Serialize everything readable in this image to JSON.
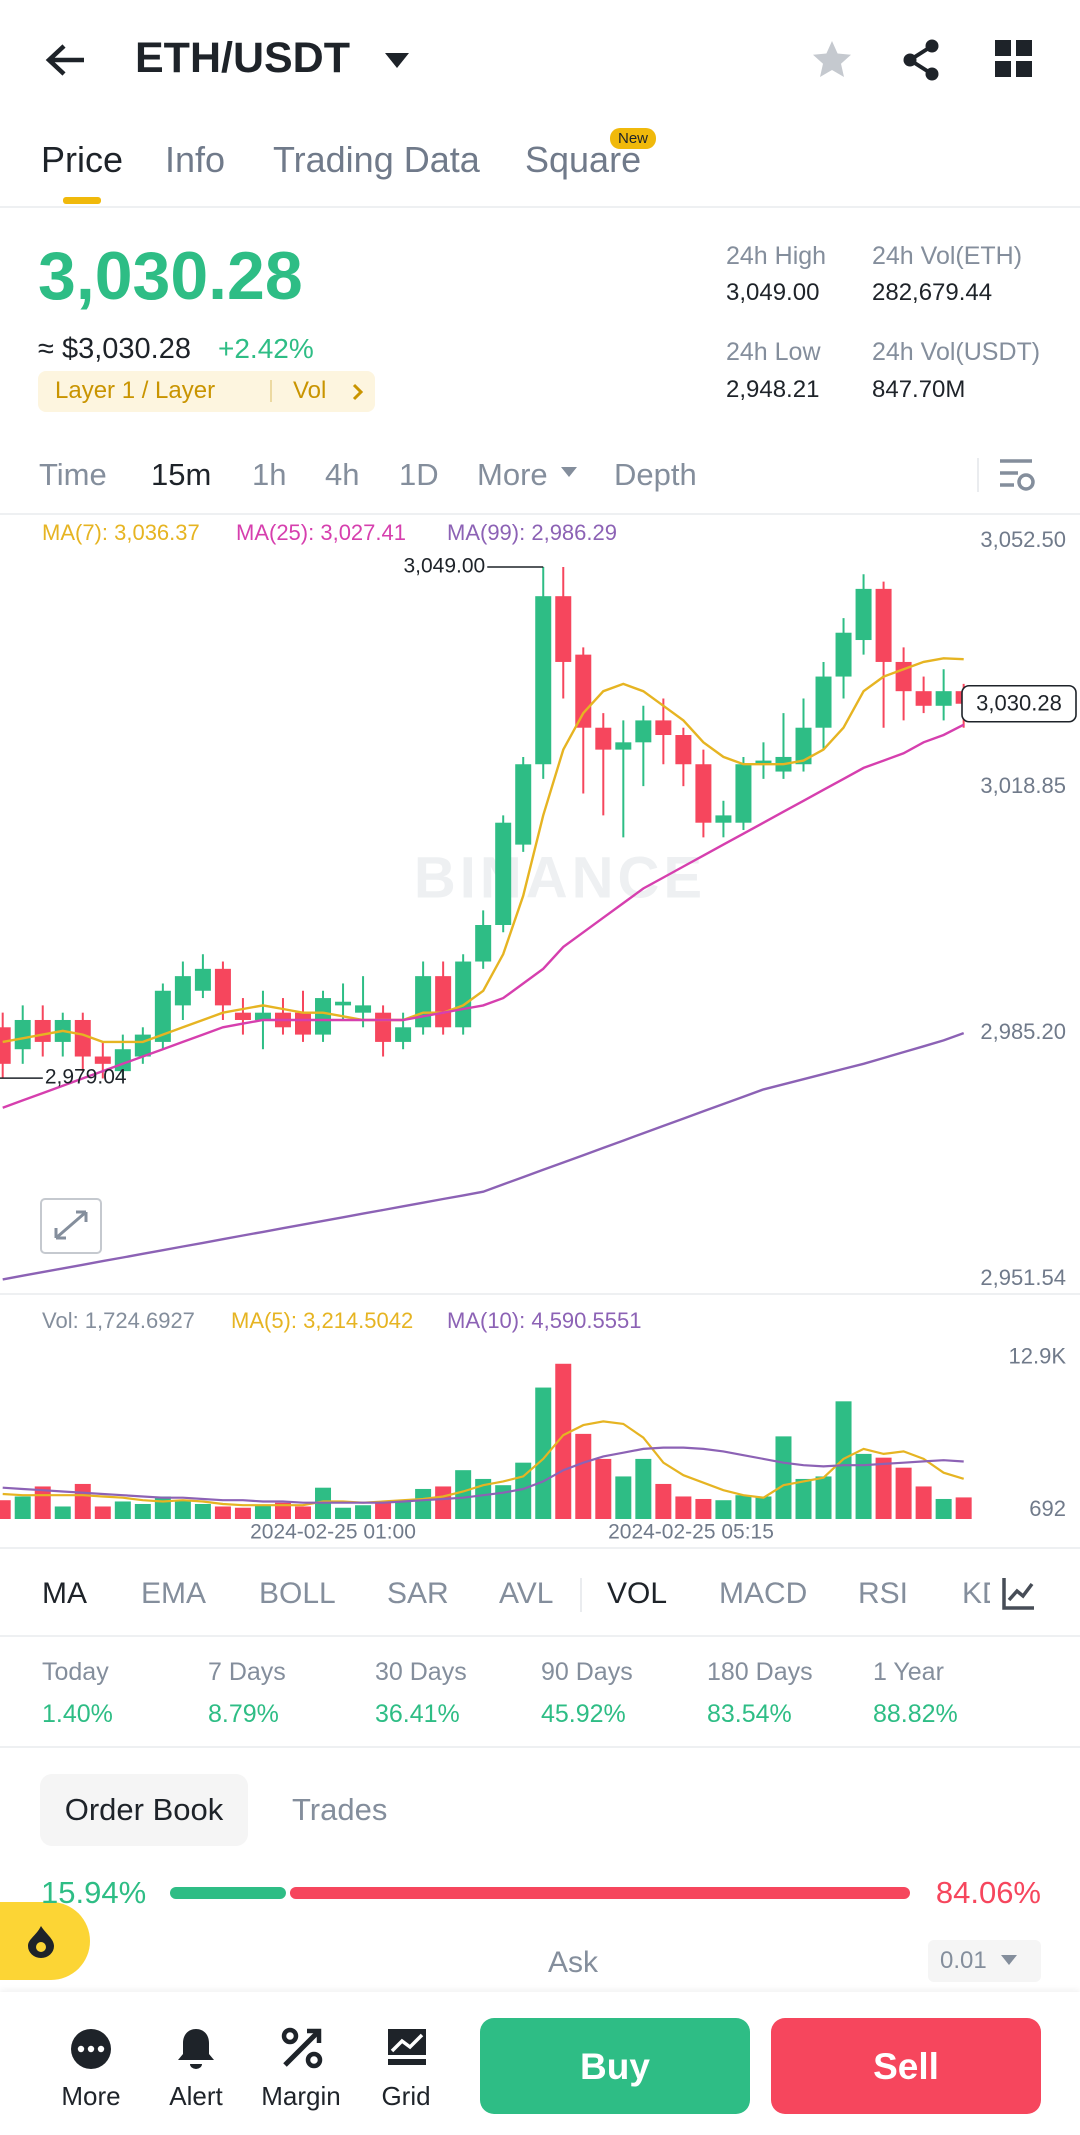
{
  "header": {
    "pair": "ETH/USDT"
  },
  "tabs": [
    "Price",
    "Info",
    "Trading Data",
    "Square"
  ],
  "tab_badge": "New",
  "ticker": {
    "price": "3,030.28",
    "usd": "≈ $3,030.28",
    "change": "+2.42%",
    "tag": "Layer 1 / Layer",
    "tag_link": "Vol"
  },
  "stats": [
    {
      "label": "24h High",
      "value": "3,049.00"
    },
    {
      "label": "24h Vol(ETH)",
      "value": "282,679.44"
    },
    {
      "label": "24h Low",
      "value": "2,948.21"
    },
    {
      "label": "24h Vol(USDT)",
      "value": "847.70M"
    }
  ],
  "intervals": [
    "Time",
    "15m",
    "1h",
    "4h",
    "1D",
    "More",
    "Depth"
  ],
  "chart_data": {
    "type": "candlestick",
    "watermark": "BINANCE",
    "up_color": "#2ebd85",
    "down_color": "#f6465d",
    "ylim": [
      2949.5,
      3055.7
    ],
    "yticks": [
      {
        "value": 3052.5,
        "label": "3,052.50"
      },
      {
        "value": 3018.85,
        "label": "3,018.85"
      },
      {
        "value": 2985.2,
        "label": "2,985.20"
      },
      {
        "value": 2951.54,
        "label": "2,951.54"
      }
    ],
    "candles": [
      [
        2986,
        2988,
        2979,
        2981
      ],
      [
        2983,
        2989,
        2981,
        2987
      ],
      [
        2987,
        2989,
        2982,
        2984
      ],
      [
        2984,
        2988,
        2982,
        2987
      ],
      [
        2987,
        2988,
        2980,
        2982
      ],
      [
        2982,
        2984,
        2979,
        2981
      ],
      [
        2980,
        2985,
        2979.04,
        2983
      ],
      [
        2982,
        2986,
        2981,
        2985
      ],
      [
        2984,
        2992,
        2983,
        2991
      ],
      [
        2989,
        2995,
        2987,
        2993
      ],
      [
        2991,
        2996,
        2990,
        2994
      ],
      [
        2994,
        2995,
        2987,
        2989
      ],
      [
        2988,
        2990,
        2985,
        2987
      ],
      [
        2987,
        2991,
        2983,
        2988
      ],
      [
        2988,
        2990,
        2985,
        2986
      ],
      [
        2988,
        2991,
        2984,
        2985
      ],
      [
        2985,
        2991,
        2984,
        2990
      ],
      [
        2989,
        2992,
        2987,
        2989.5
      ],
      [
        2988,
        2993,
        2986,
        2989
      ],
      [
        2988,
        2989,
        2982,
        2984
      ],
      [
        2984,
        2988,
        2983,
        2986
      ],
      [
        2986,
        2995,
        2985,
        2993
      ],
      [
        2993,
        2995,
        2985,
        2986
      ],
      [
        2986,
        2996,
        2985,
        2995
      ],
      [
        2995,
        3002,
        2994,
        3000
      ],
      [
        3000,
        3015,
        2999,
        3014
      ],
      [
        3011,
        3023,
        3010,
        3022
      ],
      [
        3022,
        3049,
        3020,
        3045
      ],
      [
        3045,
        3049,
        3031,
        3036
      ],
      [
        3037,
        3038,
        3018,
        3027
      ],
      [
        3027,
        3029,
        3015,
        3024
      ],
      [
        3024,
        3028,
        3012,
        3025
      ],
      [
        3025,
        3030,
        3019,
        3028
      ],
      [
        3028,
        3031,
        3022,
        3026
      ],
      [
        3026,
        3027,
        3019,
        3022
      ],
      [
        3022,
        3024,
        3012,
        3014
      ],
      [
        3014,
        3017,
        3012,
        3015
      ],
      [
        3014,
        3023,
        3013,
        3022
      ],
      [
        3022,
        3025,
        3020,
        3022.5
      ],
      [
        3021,
        3029,
        3020,
        3023
      ],
      [
        3022,
        3031,
        3021,
        3027
      ],
      [
        3027,
        3036,
        3024,
        3034
      ],
      [
        3034,
        3042,
        3031,
        3040
      ],
      [
        3039,
        3048,
        3037,
        3046
      ],
      [
        3046,
        3047,
        3027,
        3036
      ],
      [
        3036,
        3038,
        3028,
        3032
      ],
      [
        3032,
        3034,
        3029,
        3030
      ],
      [
        3030,
        3035,
        3028,
        3032
      ],
      [
        3032,
        3033,
        3027,
        3030.28
      ]
    ],
    "ma": [
      {
        "label": "MA(7): 3,036.37",
        "color": "#e6b422",
        "values": [
          2984,
          2984.5,
          2985,
          2985.5,
          2985,
          2984,
          2984,
          2984,
          2985,
          2986,
          2987,
          2988,
          2988.5,
          2989,
          2988.5,
          2988,
          2988,
          2987.5,
          2987,
          2987,
          2987,
          2988,
          2988,
          2989,
          2991,
          2996,
          3004,
          3015,
          3024,
          3029,
          3032,
          3033,
          3032,
          3030,
          3028,
          3025,
          3023,
          3022,
          3022,
          3022,
          3022.5,
          3024,
          3027,
          3032,
          3034,
          3035,
          3036,
          3036.5,
          3036.37
        ]
      },
      {
        "label": "MA(25): 3,027.41",
        "color": "#d63fae",
        "values": [
          2975,
          2976,
          2977,
          2978,
          2979,
          2980,
          2981,
          2982,
          2983,
          2984,
          2985,
          2986,
          2986.5,
          2987,
          2987,
          2987,
          2987,
          2987,
          2987,
          2987,
          2987,
          2987.5,
          2988,
          2988.5,
          2989,
          2990,
          2992,
          2994,
          2997,
          2999,
          3001,
          3003,
          3005,
          3006.5,
          3008,
          3009.5,
          3011,
          3012.5,
          3014,
          3015.5,
          3017,
          3018.5,
          3020,
          3021.5,
          3022.5,
          3023.5,
          3025,
          3026,
          3027.41
        ]
      },
      {
        "label": "MA(99): 2,986.29",
        "color": "#8c62b5",
        "values": [
          2951.5,
          2952,
          2952.5,
          2953,
          2953.5,
          2954,
          2954.5,
          2955,
          2955.5,
          2956,
          2956.5,
          2957,
          2957.5,
          2958,
          2958.5,
          2959,
          2959.5,
          2960,
          2960.5,
          2961,
          2961.5,
          2962,
          2962.5,
          2963,
          2963.5,
          2964.5,
          2965.5,
          2966.5,
          2967.5,
          2968.5,
          2969.5,
          2970.5,
          2971.5,
          2972.5,
          2973.5,
          2974.5,
          2975.5,
          2976.5,
          2977.5,
          2978.2,
          2978.9,
          2979.6,
          2980.3,
          2981,
          2981.8,
          2982.6,
          2983.4,
          2984.2,
          2985.2
        ]
      }
    ],
    "high_label": {
      "value": 3049,
      "label": "3,049.00",
      "index": 27
    },
    "low_label": {
      "value": 2979.04,
      "label": "2,979.04",
      "index": 6
    },
    "last_price": {
      "value": 3030.28,
      "label": "3,030.28"
    },
    "x_labels": [
      "2024-02-25 01:00",
      "2024-02-25 05:15"
    ],
    "volume": {
      "label": "Vol: 1,724.6927",
      "ylim": [
        0,
        13500
      ],
      "yticks": [
        {
          "value": 12900,
          "label": "12.9K"
        },
        692
      ],
      "values": [
        1500,
        1800,
        2600,
        1000,
        2800,
        1000,
        1400,
        1200,
        1800,
        1500,
        1200,
        1000,
        900,
        1100,
        1300,
        1000,
        2500,
        900,
        1100,
        1300,
        1500,
        2400,
        2600,
        3900,
        3200,
        2700,
        4500,
        10500,
        12400,
        6800,
        4800,
        3400,
        4800,
        2800,
        1800,
        1600,
        1500,
        1900,
        1800,
        6600,
        3200,
        3400,
        9400,
        5200,
        4900,
        4100,
        2600,
        1600,
        1724.6927
      ],
      "ma": [
        {
          "label": "MA(5): 3,214.5042",
          "color": "#e6b422",
          "values": [
            2000,
            1900,
            1900,
            1900,
            1900,
            1800,
            1700,
            1500,
            1400,
            1500,
            1400,
            1200,
            1100,
            1100,
            1100,
            1100,
            1400,
            1400,
            1300,
            1400,
            1500,
            1600,
            1800,
            2200,
            2700,
            3000,
            3400,
            4800,
            6700,
            7500,
            7800,
            7600,
            6500,
            4500,
            3500,
            2900,
            2300,
            1900,
            1700,
            2700,
            3000,
            3300,
            4800,
            5600,
            5200,
            5400,
            4800,
            3700,
            3214.5042
          ]
        },
        {
          "label": "MA(10): 4,590.5551",
          "color": "#8c62b5",
          "values": [
            2500,
            2400,
            2300,
            2200,
            2100,
            2000,
            1900,
            1800,
            1700,
            1700,
            1600,
            1500,
            1500,
            1400,
            1400,
            1300,
            1300,
            1300,
            1300,
            1300,
            1400,
            1500,
            1600,
            1700,
            1900,
            2100,
            2400,
            3000,
            3900,
            4500,
            5000,
            5300,
            5600,
            5700,
            5700,
            5600,
            5400,
            5100,
            4800,
            4500,
            4300,
            4200,
            4300,
            4300,
            4400,
            4500,
            4600,
            4700,
            4590.5551
          ]
        }
      ]
    }
  },
  "indicators": [
    "MA",
    "EMA",
    "BOLL",
    "SAR",
    "AVL",
    "VOL",
    "MACD",
    "RSI",
    "KD"
  ],
  "performance": [
    {
      "label": "Today",
      "value": "1.40%"
    },
    {
      "label": "7 Days",
      "value": "8.79%"
    },
    {
      "label": "30 Days",
      "value": "36.41%"
    },
    {
      "label": "90 Days",
      "value": "45.92%"
    },
    {
      "label": "180 Days",
      "value": "83.54%"
    },
    {
      "label": "1 Year",
      "value": "88.82%"
    }
  ],
  "order_book": {
    "tabs": [
      "Order Book",
      "Trades"
    ],
    "ratio": {
      "values": [
        15.94,
        84.06
      ],
      "value_labels": [
        "15.94%",
        "84.06%"
      ]
    },
    "ask": "Ask",
    "step": "0.01"
  },
  "nav": [
    "More",
    "Alert",
    "Margin",
    "Grid"
  ],
  "buy": "Buy",
  "sell": "Sell"
}
